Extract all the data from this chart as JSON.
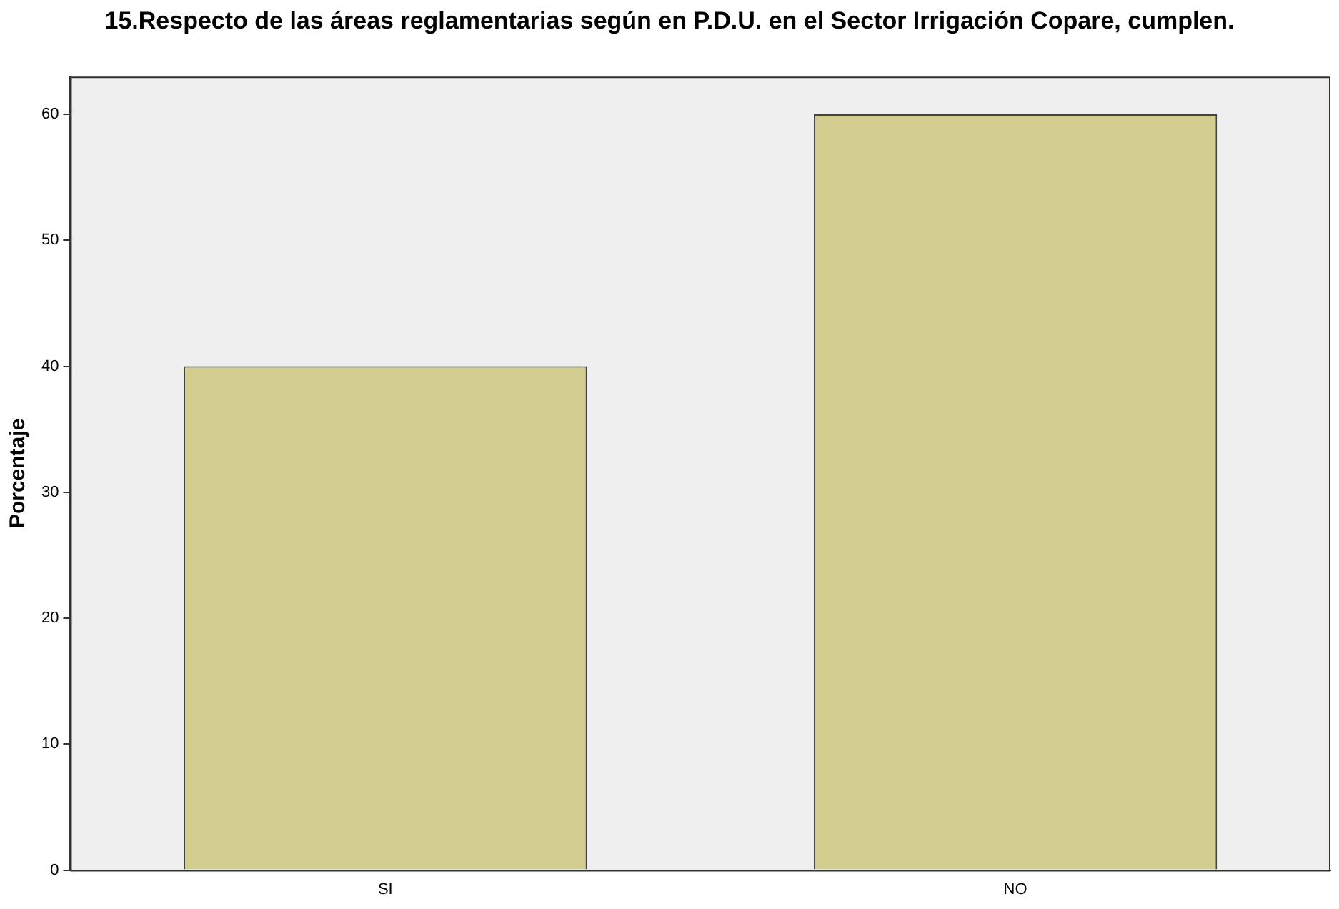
{
  "chart_data": {
    "type": "bar",
    "title": "15.Respecto de las áreas reglamentarias según en P.D.U. en el Sector Irrigación Copare, cumplen.",
    "ylabel": "Porcentaje",
    "categories": [
      "SI",
      "NO"
    ],
    "values": [
      40,
      60
    ],
    "color": "#d2cc8e",
    "ylim": [
      0,
      63
    ],
    "yticks": [
      0,
      10,
      20,
      30,
      40,
      50,
      60
    ],
    "grid": false,
    "legend": false
  }
}
